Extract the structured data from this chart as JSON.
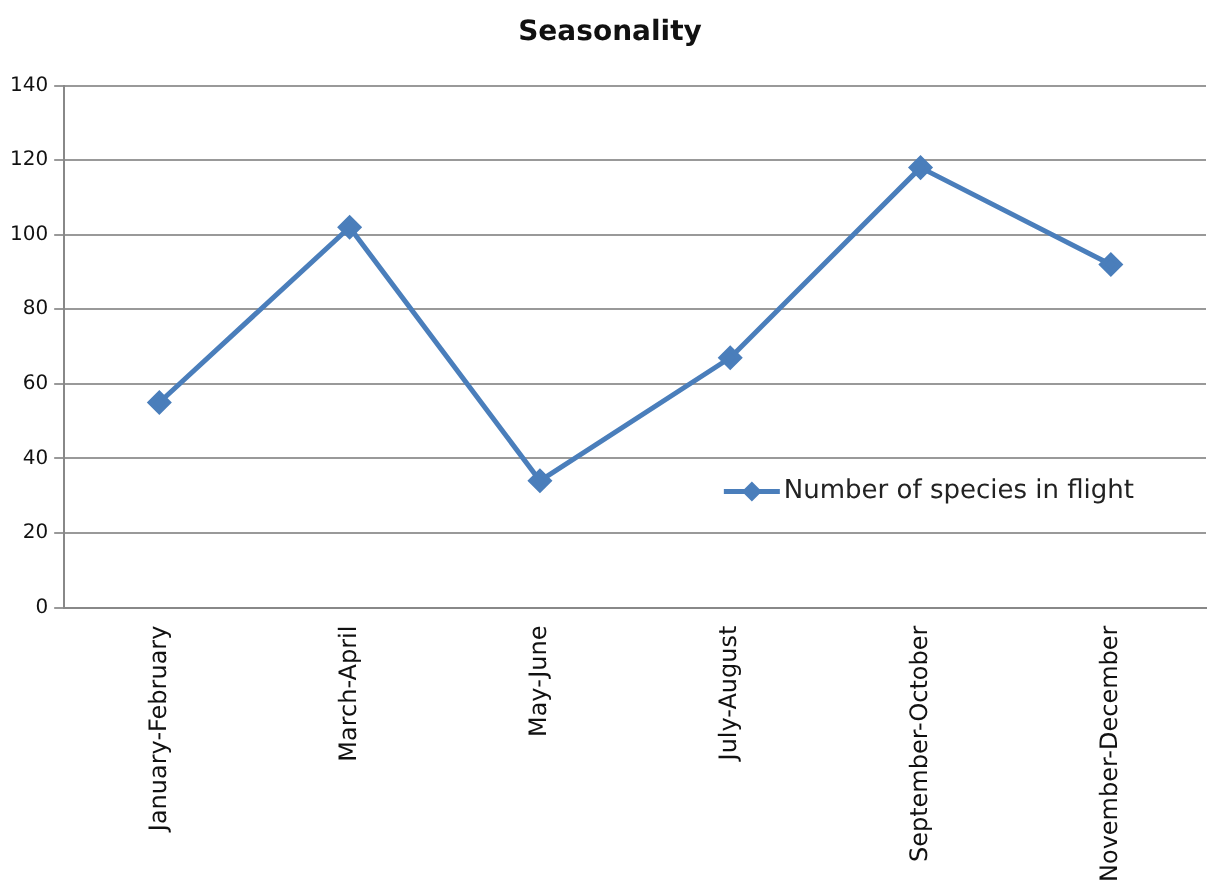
{
  "chart_data": {
    "type": "line",
    "title": "Seasonality",
    "categories": [
      "January-February",
      "March-April",
      "May-June",
      "July-August",
      "September-October",
      "November-December"
    ],
    "series": [
      {
        "name": "Number of species in flight",
        "color": "#4a7ebb",
        "values": [
          55,
          102,
          34,
          67,
          118,
          92
        ]
      }
    ],
    "ylim": [
      0,
      140
    ],
    "yticks": [
      0,
      20,
      40,
      60,
      80,
      100,
      120,
      140
    ],
    "grid": "y",
    "legend": "bottom right",
    "marker": "diamond",
    "line_style": "solid"
  }
}
